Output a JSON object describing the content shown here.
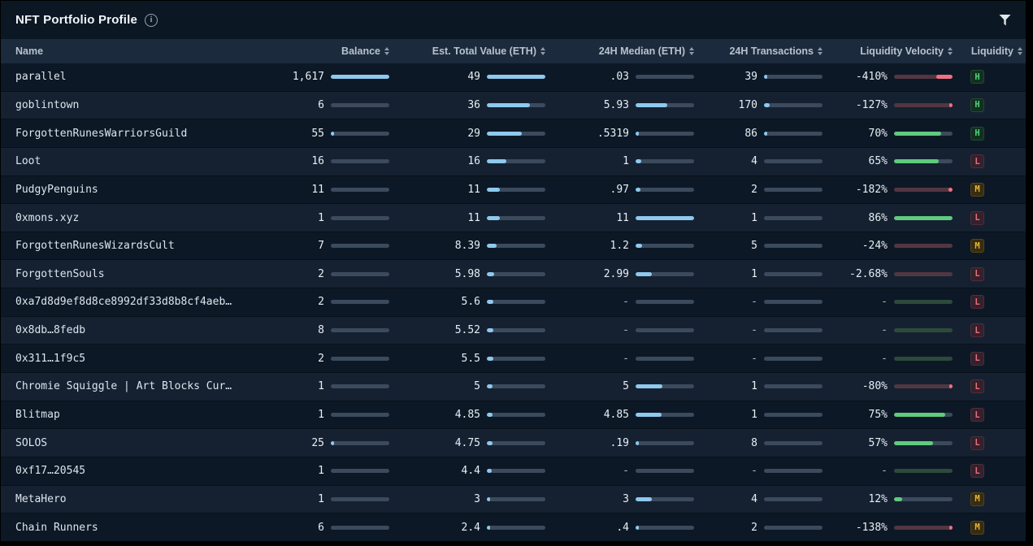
{
  "header": {
    "title": "NFT Portfolio Profile"
  },
  "table": {
    "columns": [
      {
        "label": "Name",
        "sortable": false
      },
      {
        "label": "Balance",
        "sortable": true
      },
      {
        "label": "Est. Total Value (ETH)",
        "sortable": true
      },
      {
        "label": "24H Median (ETH)",
        "sortable": true
      },
      {
        "label": "24H Transactions",
        "sortable": true
      },
      {
        "label": "Liquidity Velocity",
        "sortable": true
      },
      {
        "label": "Liquidity",
        "sortable": true
      }
    ],
    "bar_scales": {
      "balance": 1617,
      "est_total": 49,
      "median": 11,
      "transactions": 1700
    },
    "rows": [
      {
        "name": "parallel",
        "balance": "1,617",
        "balance_v": 1617,
        "est": "49",
        "est_v": 49,
        "median": ".03",
        "median_v": 0.03,
        "tx": "39",
        "tx_v": 39,
        "velocity": "-410%",
        "velocity_dir": "neg",
        "velocity_bar": 28,
        "liquidity": "H"
      },
      {
        "name": "goblintown",
        "balance": "6",
        "balance_v": 6,
        "est": "36",
        "est_v": 36,
        "median": "5.93",
        "median_v": 5.93,
        "tx": "170",
        "tx_v": 170,
        "velocity": "-127%",
        "velocity_dir": "neg",
        "velocity_bar": 6,
        "liquidity": "H"
      },
      {
        "name": "ForgottenRunesWarriorsGuild",
        "balance": "55",
        "balance_v": 55,
        "est": "29",
        "est_v": 29,
        "median": ".5319",
        "median_v": 0.5319,
        "tx": "86",
        "tx_v": 86,
        "velocity": "70%",
        "velocity_dir": "pos",
        "velocity_bar": 81,
        "liquidity": "H"
      },
      {
        "name": "Loot",
        "balance": "16",
        "balance_v": 16,
        "est": "16",
        "est_v": 16,
        "median": "1",
        "median_v": 1,
        "tx": "4",
        "tx_v": 4,
        "velocity": "65%",
        "velocity_dir": "pos",
        "velocity_bar": 76,
        "liquidity": "L"
      },
      {
        "name": "PudgyPenguins",
        "balance": "11",
        "balance_v": 11,
        "est": "11",
        "est_v": 11,
        "median": ".97",
        "median_v": 0.97,
        "tx": "2",
        "tx_v": 2,
        "velocity": "-182%",
        "velocity_dir": "neg",
        "velocity_bar": 7,
        "liquidity": "M"
      },
      {
        "name": "0xmons.xyz",
        "balance": "1",
        "balance_v": 1,
        "est": "11",
        "est_v": 11,
        "median": "11",
        "median_v": 11,
        "tx": "1",
        "tx_v": 1,
        "velocity": "86%",
        "velocity_dir": "pos",
        "velocity_bar": 100,
        "liquidity": "L"
      },
      {
        "name": "ForgottenRunesWizardsCult",
        "balance": "7",
        "balance_v": 7,
        "est": "8.39",
        "est_v": 8.39,
        "median": "1.2",
        "median_v": 1.2,
        "tx": "5",
        "tx_v": 5,
        "velocity": "-24%",
        "velocity_dir": "neg",
        "velocity_bar": 0,
        "liquidity": "M"
      },
      {
        "name": "ForgottenSouls",
        "balance": "2",
        "balance_v": 2,
        "est": "5.98",
        "est_v": 5.98,
        "median": "2.99",
        "median_v": 2.99,
        "tx": "1",
        "tx_v": 1,
        "velocity": "-2.68%",
        "velocity_dir": "neg",
        "velocity_bar": 0,
        "liquidity": "L"
      },
      {
        "name": "0xa7d8d9ef8d8ce8992df33d8b8cf4aeb…",
        "balance": "2",
        "balance_v": 2,
        "est": "5.6",
        "est_v": 5.6,
        "median": "-",
        "median_v": null,
        "tx": "-",
        "tx_v": null,
        "velocity": "-",
        "velocity_dir": "none",
        "velocity_bar": 0,
        "liquidity": "L"
      },
      {
        "name": "0x8db…8fedb",
        "balance": "8",
        "balance_v": 8,
        "est": "5.52",
        "est_v": 5.52,
        "median": "-",
        "median_v": null,
        "tx": "-",
        "tx_v": null,
        "velocity": "-",
        "velocity_dir": "none",
        "velocity_bar": 0,
        "liquidity": "L"
      },
      {
        "name": "0x311…1f9c5",
        "balance": "2",
        "balance_v": 2,
        "est": "5.5",
        "est_v": 5.5,
        "median": "-",
        "median_v": null,
        "tx": "-",
        "tx_v": null,
        "velocity": "-",
        "velocity_dir": "none",
        "velocity_bar": 0,
        "liquidity": "L"
      },
      {
        "name": "Chromie Squiggle | Art Blocks Cur…",
        "balance": "1",
        "balance_v": 1,
        "est": "5",
        "est_v": 5,
        "median": "5",
        "median_v": 5,
        "tx": "1",
        "tx_v": 1,
        "velocity": "-80%",
        "velocity_dir": "neg",
        "velocity_bar": 4,
        "liquidity": "L"
      },
      {
        "name": "Blitmap",
        "balance": "1",
        "balance_v": 1,
        "est": "4.85",
        "est_v": 4.85,
        "median": "4.85",
        "median_v": 4.85,
        "tx": "1",
        "tx_v": 1,
        "velocity": "75%",
        "velocity_dir": "pos",
        "velocity_bar": 87,
        "liquidity": "L"
      },
      {
        "name": "SOLOS",
        "balance": "25",
        "balance_v": 25,
        "est": "4.75",
        "est_v": 4.75,
        "median": ".19",
        "median_v": 0.19,
        "tx": "8",
        "tx_v": 8,
        "velocity": "57%",
        "velocity_dir": "pos",
        "velocity_bar": 66,
        "liquidity": "L"
      },
      {
        "name": "0xf17…20545",
        "balance": "1",
        "balance_v": 1,
        "est": "4.4",
        "est_v": 4.4,
        "median": "-",
        "median_v": null,
        "tx": "-",
        "tx_v": null,
        "velocity": "-",
        "velocity_dir": "none",
        "velocity_bar": 0,
        "liquidity": "L"
      },
      {
        "name": "MetaHero",
        "balance": "1",
        "balance_v": 1,
        "est": "3",
        "est_v": 3,
        "median": "3",
        "median_v": 3,
        "tx": "4",
        "tx_v": 4,
        "velocity": "12%",
        "velocity_dir": "pos",
        "velocity_bar": 14,
        "liquidity": "M"
      },
      {
        "name": "Chain Runners",
        "balance": "6",
        "balance_v": 6,
        "est": "2.4",
        "est_v": 2.4,
        "median": ".4",
        "median_v": 0.4,
        "tx": "2",
        "tx_v": 2,
        "velocity": "-138%",
        "velocity_dir": "neg",
        "velocity_bar": 6,
        "liquidity": "M"
      }
    ]
  },
  "colors": {
    "background": "#0a1520",
    "header_row": "#1b2a3c",
    "row_odd": "#0d1826",
    "row_even": "#152131",
    "bar_track": "#3b4a5c",
    "bar_blue": "#8ec9ee",
    "bar_green": "#5fcb7d",
    "bar_red": "#ef7183",
    "bar_red_track": "#523642",
    "bar_green_track": "#2d4a3b",
    "badge_high": "#4ed37d",
    "badge_medium": "#e5b73c",
    "badge_low": "#e4707e"
  }
}
